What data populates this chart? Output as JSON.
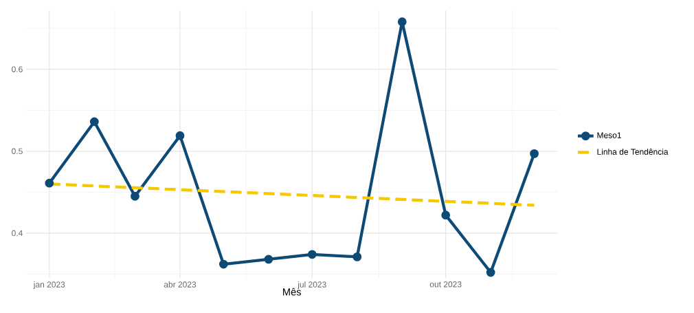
{
  "chart_data": {
    "type": "line",
    "xlabel": "Mês",
    "x": [
      "2023-01-01",
      "2023-02-01",
      "2023-03-01",
      "2023-04-01",
      "2023-05-01",
      "2023-06-01",
      "2023-07-01",
      "2023-08-01",
      "2023-09-01",
      "2023-10-01",
      "2023-11-01",
      "2023-12-01"
    ],
    "series": [
      {
        "name": "Meso1",
        "color": "#0d4a75",
        "marker": "circle",
        "line_style": "solid",
        "values": [
          0.461,
          0.536,
          0.445,
          0.519,
          0.362,
          0.368,
          0.374,
          0.371,
          0.658,
          0.422,
          0.352,
          0.497
        ]
      },
      {
        "name": "Linha de Tendência",
        "color": "#f5c800",
        "marker": "none",
        "line_style": "dashed",
        "x": [
          "2023-01-01",
          "2023-12-01"
        ],
        "values": [
          0.46,
          0.434
        ]
      }
    ],
    "xlim": [
      "2022-12-16",
      "2023-12-17"
    ],
    "xticks": [
      {
        "value": "2023-01-01",
        "label": "jan 2023"
      },
      {
        "value": "2023-04-01",
        "label": "abr 2023"
      },
      {
        "value": "2023-07-01",
        "label": "jul 2023"
      },
      {
        "value": "2023-10-01",
        "label": "out 2023"
      }
    ],
    "ylim": [
      0.345,
      0.672
    ],
    "yticks": [
      0.4,
      0.5,
      0.6
    ],
    "grid": true,
    "legend": "right"
  }
}
